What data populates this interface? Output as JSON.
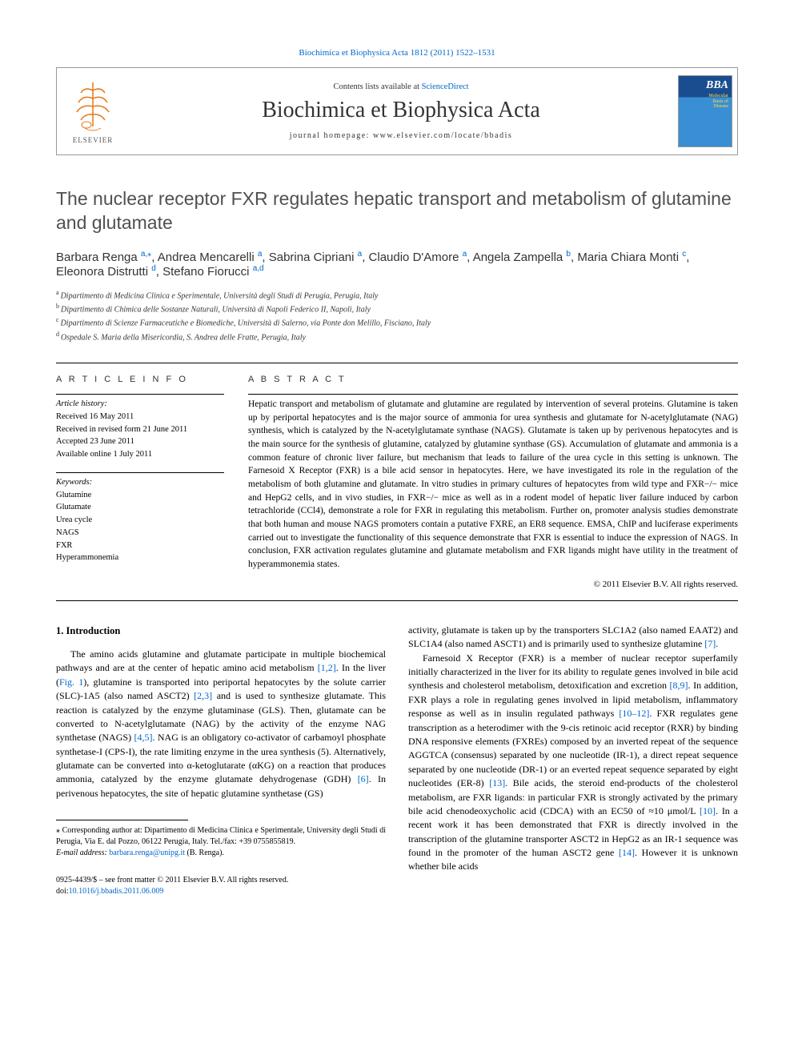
{
  "top_citation": "Biochimica et Biophysica Acta 1812 (2011) 1522–1531",
  "header": {
    "contents_prefix": "Contents lists available at ",
    "contents_link": "ScienceDirect",
    "journal": "Biochimica et Biophysica Acta",
    "homepage_prefix": "journal homepage: ",
    "homepage_url": "www.elsevier.com/locate/bbadis",
    "publisher_name": "ELSEVIER",
    "cover_bba": "BBA",
    "cover_sub1": "Molecular",
    "cover_sub2": "Basis of",
    "cover_sub3": "Disease"
  },
  "title": "The nuclear receptor FXR regulates hepatic transport and metabolism of glutamine and glutamate",
  "authors": [
    {
      "name": "Barbara Renga",
      "sup": "a,",
      "star": "⁎"
    },
    {
      "name": "Andrea Mencarelli",
      "sup": "a"
    },
    {
      "name": "Sabrina Cipriani",
      "sup": "a"
    },
    {
      "name": "Claudio D'Amore",
      "sup": "a"
    },
    {
      "name": "Angela Zampella",
      "sup": "b"
    },
    {
      "name": "Maria Chiara Monti",
      "sup": "c"
    },
    {
      "name": "Eleonora Distrutti",
      "sup": "d"
    },
    {
      "name": "Stefano Fiorucci",
      "sup": "a,d"
    }
  ],
  "affiliations": [
    {
      "key": "a",
      "text": "Dipartimento di Medicina Clinica e Sperimentale, Università degli Studi di Perugia, Perugia, Italy"
    },
    {
      "key": "b",
      "text": "Dipartimento di Chimica delle Sostanze Naturali, Università di Napoli Federico II, Napoli, Italy"
    },
    {
      "key": "c",
      "text": "Dipartimento di Scienze Farmaceutiche e Biomediche, Università di Salerno, via Ponte don Melillo, Fisciano, Italy"
    },
    {
      "key": "d",
      "text": "Ospedale S. Maria della Misericordia, S. Andrea delle Fratte, Perugia, Italy"
    }
  ],
  "info": {
    "heading": "A R T I C L E   I N F O",
    "history_label": "Article history:",
    "received": "Received 16 May 2011",
    "revised": "Received in revised form 21 June 2011",
    "accepted": "Accepted 23 June 2011",
    "online": "Available online 1 July 2011",
    "keywords_label": "Keywords:",
    "keywords": [
      "Glutamine",
      "Glutamate",
      "Urea cycle",
      "NAGS",
      "FXR",
      "Hyperammonemia"
    ]
  },
  "abstract": {
    "heading": "A B S T R A C T",
    "text": "Hepatic transport and metabolism of glutamate and glutamine are regulated by intervention of several proteins. Glutamine is taken up by periportal hepatocytes and is the major source of ammonia for urea synthesis and glutamate for N-acetylglutamate (NAG) synthesis, which is catalyzed by the N-acetylglutamate synthase (NAGS). Glutamate is taken up by perivenous hepatocytes and is the main source for the synthesis of glutamine, catalyzed by glutamine synthase (GS). Accumulation of glutamate and ammonia is a common feature of chronic liver failure, but mechanism that leads to failure of the urea cycle in this setting is unknown. The Farnesoid X Receptor (FXR) is a bile acid sensor in hepatocytes. Here, we have investigated its role in the regulation of the metabolism of both glutamine and glutamate. In vitro studies in primary cultures of hepatocytes from wild type and FXR−/− mice and HepG2 cells, and in vivo studies, in FXR−/− mice as well as in a rodent model of hepatic liver failure induced by carbon tetrachloride (CCl4), demonstrate a role for FXR in regulating this metabolism. Further on, promoter analysis studies demonstrate that both human and mouse NAGS promoters contain a putative FXRE, an ER8 sequence. EMSA, ChIP and luciferase experiments carried out to investigate the functionality of this sequence demonstrate that FXR is essential to induce the expression of NAGS. In conclusion, FXR activation regulates glutamine and glutamate metabolism and FXR ligands might have utility in the treatment of hyperammonemia states.",
    "copyright": "© 2011 Elsevier B.V. All rights reserved."
  },
  "intro": {
    "heading": "1. Introduction",
    "p1_a": "The amino acids glutamine and glutamate participate in multiple biochemical pathways and are at the center of hepatic amino acid metabolism ",
    "p1_cite1": "[1,2]",
    "p1_b": ". In the liver (",
    "p1_fig": "Fig. 1",
    "p1_c": "), glutamine is transported into periportal hepatocytes by the solute carrier (SLC)-1A5 (also named ASCT2) ",
    "p1_cite2": "[2,3]",
    "p1_d": " and is used to synthesize glutamate. This reaction is catalyzed by the enzyme glutaminase (GLS). Then, glutamate can be converted to N-acetylglutamate (NAG) by the activity of the enzyme NAG synthetase (NAGS) ",
    "p1_cite3": "[4,5]",
    "p1_e": ". NAG is an obligatory co-activator of carbamoyl phosphate synthetase-I (CPS-I), the rate limiting enzyme in the urea synthesis (5). Alternatively, glutamate can be converted into α-ketoglutarate (αKG) on a reaction that produces ammonia, catalyzed by the enzyme glutamate dehydrogenase (GDH) ",
    "p1_cite4": "[6]",
    "p1_f": ". In perivenous hepatocytes, the site of hepatic glutamine synthetase (GS) ",
    "p2_a": "activity, glutamate is taken up by the transporters SLC1A2 (also named EAAT2) and SLC1A4 (also named ASCT1) and is primarily used to synthesize glutamine ",
    "p2_cite1": "[7]",
    "p2_b": ".",
    "p3_a": "Farnesoid X Receptor (FXR) is a member of nuclear receptor superfamily initially characterized in the liver for its ability to regulate genes involved in bile acid synthesis and cholesterol metabolism, detoxification and excretion ",
    "p3_cite1": "[8,9]",
    "p3_b": ". In addition, FXR plays a role in regulating genes involved in lipid metabolism, inflammatory response as well as in insulin regulated pathways ",
    "p3_cite2": "[10–12]",
    "p3_c": ". FXR regulates gene transcription as a heterodimer with the 9-cis retinoic acid receptor (RXR) by binding DNA responsive elements (FXREs) composed by an inverted repeat of the sequence AGGTCA (consensus) separated by one nucleotide (IR-1), a direct repeat sequence separated by one nucleotide (DR-1) or an everted repeat sequence separated by eight nucleotides (ER-8) ",
    "p3_cite3": "[13]",
    "p3_d": ". Bile acids, the steroid end-products of the cholesterol metabolism, are FXR ligands: in particular FXR is strongly activated by the primary bile acid chenodeoxycholic acid (CDCA) with an EC50 of ≈10 μmol/L ",
    "p3_cite4": "[10]",
    "p3_e": ". In a recent work it has been demonstrated that FXR is directly involved in the transcription of the glutamine transporter ASCT2 in HepG2 as an IR-1 sequence was found in the promoter of the human ASCT2 gene ",
    "p3_cite5": "[14]",
    "p3_f": ". However it is unknown whether bile acids"
  },
  "footnote": {
    "corr": "⁎ Corresponding author at: Dipartimento di Medicina Clinica e Sperimentale, University degli Studi di Perugia, Via E. dal Pozzo, 06122 Perugia, Italy. Tel./fax: +39 0755855819.",
    "email_label": "E-mail address: ",
    "email": "barbara.renga@unipg.it",
    "email_suffix": " (B. Renga)."
  },
  "bottom": {
    "issn": "0925-4439/$ – see front matter © 2011 Elsevier B.V. All rights reserved.",
    "doi": "doi:10.1016/j.bbadis.2011.06.009"
  }
}
